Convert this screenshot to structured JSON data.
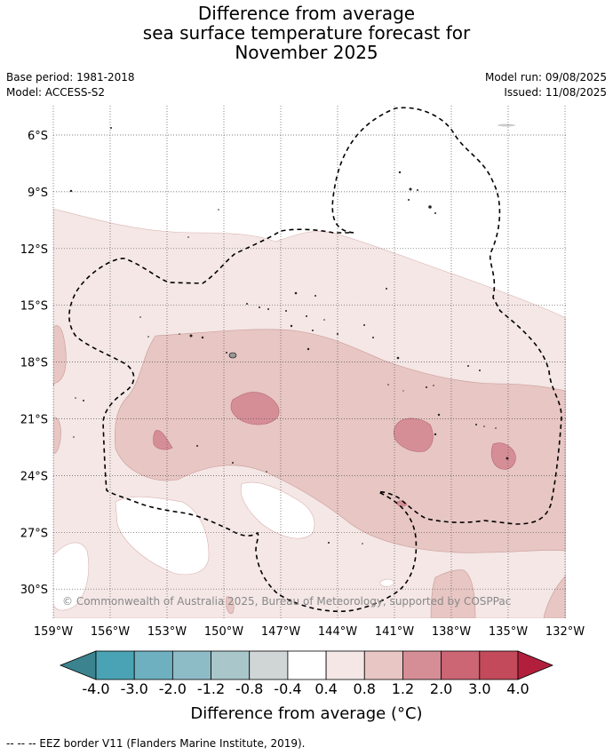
{
  "title": {
    "line1": "Difference from average",
    "line2": "sea surface temperature forecast for",
    "line3": "November 2025"
  },
  "meta": {
    "base_period": "Base period: 1981-2018",
    "model": "Model: ACCESS-S2",
    "model_run": "Model run: 09/08/2025",
    "issued": "Issued: 11/08/2025"
  },
  "map": {
    "lat_labels": [
      "6°S",
      "9°S",
      "12°S",
      "15°S",
      "18°S",
      "21°S",
      "24°S",
      "27°S",
      "30°S"
    ],
    "lon_labels": [
      "159°W",
      "156°W",
      "153°W",
      "150°W",
      "147°W",
      "144°W",
      "141°W",
      "138°W",
      "135°W",
      "132°W"
    ],
    "copyright": "© Commonwealth of Australia 2025, Bureau of Meteorology, supported by COSPPac"
  },
  "colorbar": {
    "ticks": [
      "-4.0",
      "-3.0",
      "-2.0",
      "-1.2",
      "-0.8",
      "-0.4",
      "0.4",
      "0.8",
      "1.2",
      "2.0",
      "3.0",
      "4.0"
    ],
    "colors": [
      "#4aa3b4",
      "#6eb0bf",
      "#8ebcc6",
      "#a9c7cb",
      "#d0d6d6",
      "#ffffff",
      "#f4e7e6",
      "#e7c6c3",
      "#d68e96",
      "#cc6574",
      "#c24a5b"
    ],
    "low_color": "#3c8390",
    "high_color": "#b21f3c",
    "label": "Difference from average (°C)"
  },
  "legend_note": "-- -- -- EEZ border V11 (Flanders Marine Institute, 2019)."
}
